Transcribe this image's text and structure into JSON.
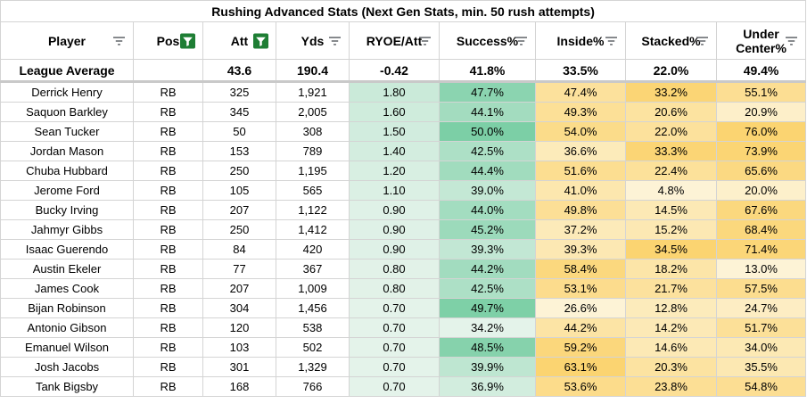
{
  "title": "Rushing Advanced Stats (Next Gen Stats, min. 50 rush attempts)",
  "columns": [
    {
      "label": "Player",
      "filter": "filter-icon",
      "active": false
    },
    {
      "label": "Pos",
      "filter": "filter-active-icon",
      "active": true
    },
    {
      "label": "Att",
      "filter": "filter-active-icon",
      "active": true
    },
    {
      "label": "Yds",
      "filter": "filter-icon",
      "active": false
    },
    {
      "label": "RYOE/Att",
      "filter": "filter-icon",
      "active": false
    },
    {
      "label": "Success%",
      "filter": "filter-icon",
      "active": false
    },
    {
      "label": "Inside%",
      "filter": "filter-icon",
      "active": false
    },
    {
      "label": "Stacked%",
      "filter": "filter-icon",
      "active": false
    },
    {
      "label": "Under Center%",
      "filter": "filter-icon",
      "active": false
    }
  ],
  "league_average": {
    "label": "League Average",
    "pos": "",
    "att": "43.6",
    "yds": "190.4",
    "ryoe": "-0.42",
    "success": "41.8%",
    "inside": "33.5%",
    "stacked": "22.0%",
    "under_center": "49.4%"
  },
  "rows": [
    {
      "player": "Derrick Henry",
      "pos": "RB",
      "att": "325",
      "yds": "1,921",
      "ryoe": "1.80",
      "success": "47.7%",
      "inside": "47.4%",
      "stacked": "33.2%",
      "under_center": "55.1%"
    },
    {
      "player": "Saquon Barkley",
      "pos": "RB",
      "att": "345",
      "yds": "2,005",
      "ryoe": "1.60",
      "success": "44.1%",
      "inside": "49.3%",
      "stacked": "20.6%",
      "under_center": "20.9%"
    },
    {
      "player": "Sean Tucker",
      "pos": "RB",
      "att": "50",
      "yds": "308",
      "ryoe": "1.50",
      "success": "50.0%",
      "inside": "54.0%",
      "stacked": "22.0%",
      "under_center": "76.0%"
    },
    {
      "player": "Jordan Mason",
      "pos": "RB",
      "att": "153",
      "yds": "789",
      "ryoe": "1.40",
      "success": "42.5%",
      "inside": "36.6%",
      "stacked": "33.3%",
      "under_center": "73.9%"
    },
    {
      "player": "Chuba Hubbard",
      "pos": "RB",
      "att": "250",
      "yds": "1,195",
      "ryoe": "1.20",
      "success": "44.4%",
      "inside": "51.6%",
      "stacked": "22.4%",
      "under_center": "65.6%"
    },
    {
      "player": "Jerome Ford",
      "pos": "RB",
      "att": "105",
      "yds": "565",
      "ryoe": "1.10",
      "success": "39.0%",
      "inside": "41.0%",
      "stacked": "4.8%",
      "under_center": "20.0%"
    },
    {
      "player": "Bucky Irving",
      "pos": "RB",
      "att": "207",
      "yds": "1,122",
      "ryoe": "0.90",
      "success": "44.0%",
      "inside": "49.8%",
      "stacked": "14.5%",
      "under_center": "67.6%"
    },
    {
      "player": "Jahmyr Gibbs",
      "pos": "RB",
      "att": "250",
      "yds": "1,412",
      "ryoe": "0.90",
      "success": "45.2%",
      "inside": "37.2%",
      "stacked": "15.2%",
      "under_center": "68.4%"
    },
    {
      "player": "Isaac Guerendo",
      "pos": "RB",
      "att": "84",
      "yds": "420",
      "ryoe": "0.90",
      "success": "39.3%",
      "inside": "39.3%",
      "stacked": "34.5%",
      "under_center": "71.4%"
    },
    {
      "player": "Austin Ekeler",
      "pos": "RB",
      "att": "77",
      "yds": "367",
      "ryoe": "0.80",
      "success": "44.2%",
      "inside": "58.4%",
      "stacked": "18.2%",
      "under_center": "13.0%"
    },
    {
      "player": "James Cook",
      "pos": "RB",
      "att": "207",
      "yds": "1,009",
      "ryoe": "0.80",
      "success": "42.5%",
      "inside": "53.1%",
      "stacked": "21.7%",
      "under_center": "57.5%"
    },
    {
      "player": "Bijan Robinson",
      "pos": "RB",
      "att": "304",
      "yds": "1,456",
      "ryoe": "0.70",
      "success": "49.7%",
      "inside": "26.6%",
      "stacked": "12.8%",
      "under_center": "24.7%"
    },
    {
      "player": "Antonio Gibson",
      "pos": "RB",
      "att": "120",
      "yds": "538",
      "ryoe": "0.70",
      "success": "34.2%",
      "inside": "44.2%",
      "stacked": "14.2%",
      "under_center": "51.7%"
    },
    {
      "player": "Emanuel Wilson",
      "pos": "RB",
      "att": "103",
      "yds": "502",
      "ryoe": "0.70",
      "success": "48.5%",
      "inside": "59.2%",
      "stacked": "14.6%",
      "under_center": "34.0%"
    },
    {
      "player": "Josh Jacobs",
      "pos": "RB",
      "att": "301",
      "yds": "1,329",
      "ryoe": "0.70",
      "success": "39.9%",
      "inside": "63.1%",
      "stacked": "20.3%",
      "under_center": "35.5%"
    },
    {
      "player": "Tank Bigsby",
      "pos": "RB",
      "att": "168",
      "yds": "766",
      "ryoe": "0.70",
      "success": "36.9%",
      "inside": "53.6%",
      "stacked": "23.8%",
      "under_center": "54.8%"
    }
  ],
  "colors": {
    "green_low": "#e4f3ea",
    "green_high": "#7ccfa6",
    "yellow_low": "#fdf3d6",
    "yellow_high": "#fbd471",
    "filter_green": "#1e7e34",
    "filter_grey": "#5f6368"
  }
}
